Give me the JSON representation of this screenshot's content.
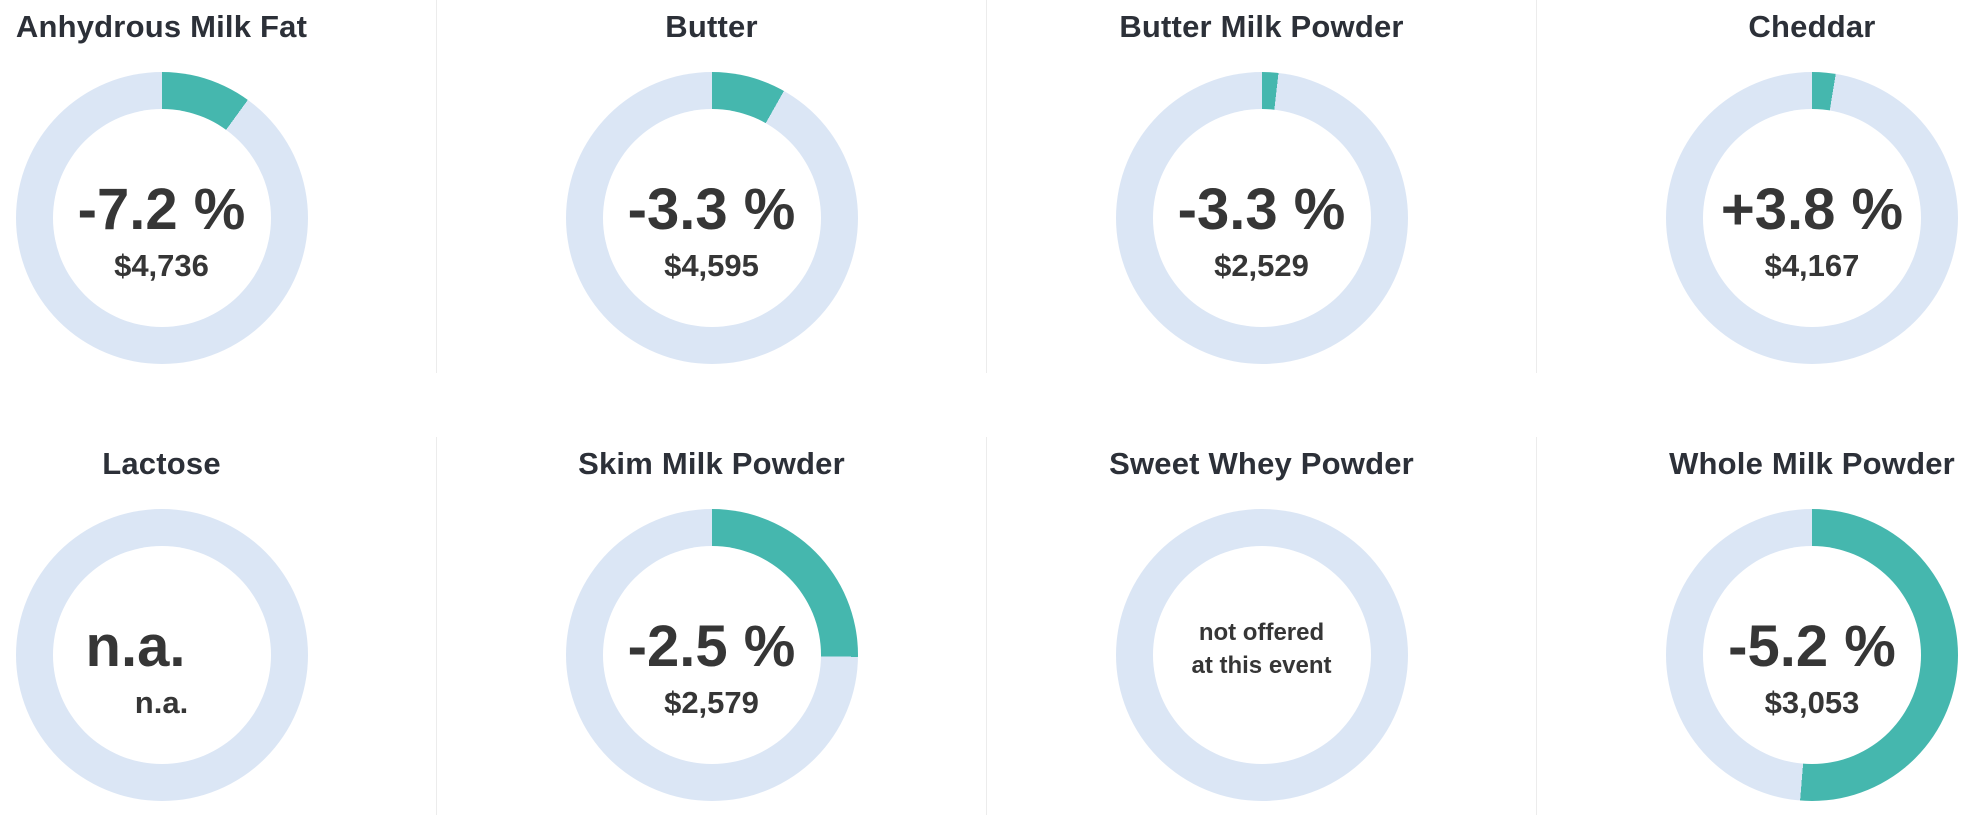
{
  "colors": {
    "arc": "#45b7ae",
    "ring": "#dbe6f5",
    "title_text": "#2c3038",
    "value_text": "#363636",
    "divider": "#ececec"
  },
  "products": [
    {
      "title": "Anhydrous Milk Fat",
      "change": "-7.2 %",
      "price": "$4,736",
      "share_pct": 10.0
    },
    {
      "title": "Butter",
      "change": "-3.3 %",
      "price": "$4,595",
      "share_pct": 8.2
    },
    {
      "title": "Butter Milk Powder",
      "change": "-3.3 %",
      "price": "$2,529",
      "share_pct": 1.8
    },
    {
      "title": "Cheddar",
      "change": "+3.8 %",
      "price": "$4,167",
      "share_pct": 2.6
    },
    {
      "title": "Lactose",
      "change": "n.a.",
      "price": "n.a.",
      "share_pct": 0
    },
    {
      "title": "Skim Milk Powder",
      "change": "-2.5 %",
      "price": "$2,579",
      "share_pct": 25.2
    },
    {
      "title": "Sweet Whey Powder",
      "note_line1": "not offered",
      "note_line2": "at this event",
      "share_pct": 0
    },
    {
      "title": "Whole Milk Powder",
      "change": "-5.2 %",
      "price": "$3,053",
      "share_pct": 51.3
    }
  ],
  "chart_data": {
    "type": "pie",
    "title": "Dairy auction event results by product (donut gauges)",
    "categories": [
      "Anhydrous Milk Fat",
      "Butter",
      "Butter Milk Powder",
      "Cheddar",
      "Lactose",
      "Skim Milk Powder",
      "Sweet Whey Powder",
      "Whole Milk Powder"
    ],
    "series": [
      {
        "name": "price_change_pct",
        "values": [
          -7.2,
          -3.3,
          -3.3,
          3.8,
          null,
          -2.5,
          null,
          -5.2
        ]
      },
      {
        "name": "average_price_usd",
        "values": [
          4736,
          4595,
          2529,
          4167,
          null,
          2579,
          null,
          3053
        ]
      },
      {
        "name": "teal_arc_fraction_pct",
        "values": [
          10.0,
          8.2,
          1.8,
          2.6,
          0,
          25.2,
          0,
          51.3
        ]
      }
    ],
    "annotations": {
      "Lactose": "n.a.",
      "Sweet Whey Powder": "not offered at this event"
    },
    "layout": "4 columns x 2 rows, arcs start at 12 o'clock and sweep clockwise, grid off, no legend"
  }
}
